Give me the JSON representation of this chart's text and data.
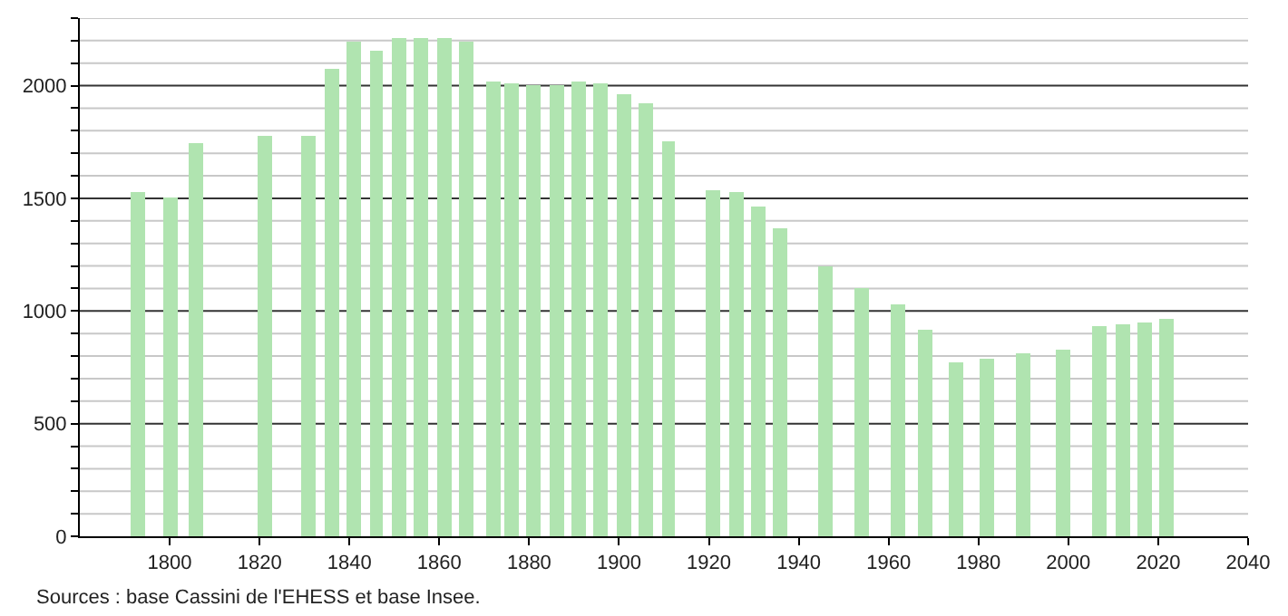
{
  "chart_data": {
    "type": "bar",
    "x": [
      1793,
      1800,
      1806,
      1821,
      1831,
      1836,
      1841,
      1846,
      1851,
      1856,
      1861,
      1866,
      1872,
      1876,
      1881,
      1886,
      1891,
      1896,
      1901,
      1906,
      1911,
      1921,
      1926,
      1931,
      1936,
      1946,
      1954,
      1962,
      1968,
      1975,
      1982,
      1990,
      1999,
      2006,
      2007,
      2012,
      2017,
      2022
    ],
    "values": [
      1528,
      1502,
      1748,
      1780,
      1780,
      2074,
      2199,
      2154,
      2209,
      2209,
      2209,
      2199,
      2019,
      2011,
      2000,
      2000,
      2019,
      2011,
      1963,
      1923,
      1756,
      1534,
      1526,
      1462,
      1370,
      1197,
      1105,
      1033,
      914,
      774,
      792,
      816,
      826,
      null,
      932,
      943,
      946,
      962
    ],
    "color": "#b0e4b0",
    "xlim": [
      1780,
      2040
    ],
    "xticks": [
      1800,
      1820,
      1840,
      1860,
      1880,
      1900,
      1920,
      1940,
      1960,
      1980,
      2000,
      2020,
      2040
    ],
    "ylim": [
      0,
      2300
    ],
    "yticks": [
      0,
      {
        "value": 100,
        "label": null
      },
      {
        "value": 200,
        "label": null
      },
      {
        "value": 300,
        "label": null
      },
      {
        "value": 400,
        "label": null
      },
      500,
      {
        "value": 600,
        "label": null
      },
      {
        "value": 700,
        "label": null
      },
      {
        "value": 800,
        "label": null
      },
      {
        "value": 900,
        "label": null
      },
      1000,
      {
        "value": 1100,
        "label": null
      },
      {
        "value": 1200,
        "label": null
      },
      {
        "value": 1300,
        "label": null
      },
      {
        "value": 1400,
        "label": null
      },
      1500,
      {
        "value": 1600,
        "label": null
      },
      {
        "value": 1700,
        "label": null
      },
      {
        "value": 1800,
        "label": null
      },
      {
        "value": 1900,
        "label": null
      },
      2000,
      {
        "value": 2100,
        "label": null
      },
      {
        "value": 2200,
        "label": null
      },
      {
        "value": 2300,
        "label": null
      }
    ],
    "grid": "y",
    "annotations": [
      "Sources : base Cassini de l'EHESS et base Insee."
    ]
  }
}
